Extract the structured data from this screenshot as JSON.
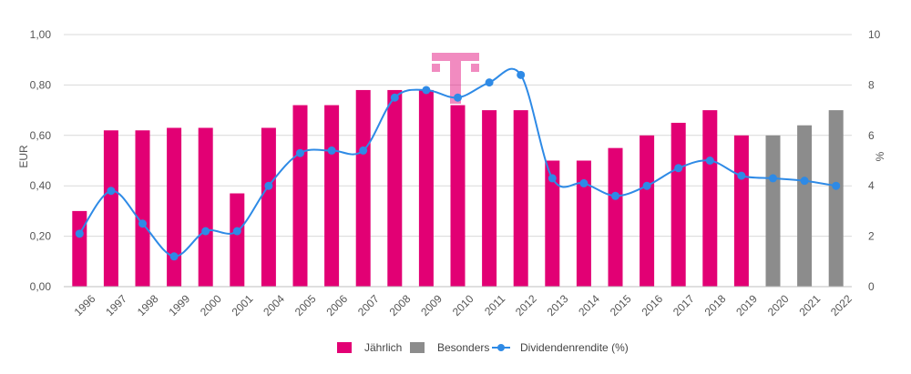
{
  "chart_data": {
    "type": "bar",
    "categories": [
      "1996",
      "1997",
      "1998",
      "1999",
      "2000",
      "2001",
      "2004",
      "2005",
      "2006",
      "2007",
      "2008",
      "2009",
      "2010",
      "2011",
      "2012",
      "2013",
      "2014",
      "2015",
      "2016",
      "2017",
      "2018",
      "2019",
      "2020",
      "2021",
      "2022"
    ],
    "ylabel": "EUR",
    "y2label": "%",
    "ylim": [
      0,
      1.0
    ],
    "y2lim": [
      0,
      10
    ],
    "yticks": [
      "0,00",
      "0,20",
      "0,40",
      "0,60",
      "0,80",
      "1,00"
    ],
    "y2ticks": [
      "0",
      "2",
      "4",
      "6",
      "8",
      "10"
    ],
    "grid": true,
    "legend": "bottom",
    "series": [
      {
        "name": "Jährlich",
        "kind": "bar",
        "color": "#e20074",
        "values": [
          0.3,
          0.62,
          0.62,
          0.63,
          0.63,
          0.37,
          0.63,
          0.72,
          0.72,
          0.78,
          0.78,
          0.78,
          0.72,
          0.7,
          0.7,
          0.5,
          0.5,
          0.55,
          0.6,
          0.65,
          0.7,
          0.6,
          null,
          null,
          null
        ]
      },
      {
        "name": "Besonders",
        "kind": "bar",
        "color": "#8c8c8c",
        "values": [
          null,
          null,
          null,
          null,
          null,
          null,
          null,
          null,
          null,
          null,
          null,
          null,
          null,
          null,
          null,
          null,
          null,
          null,
          null,
          null,
          null,
          null,
          0.6,
          0.64,
          0.7
        ]
      },
      {
        "name": "Dividendenrendite (%)",
        "kind": "line",
        "axis": "right",
        "color": "#2e8ae6",
        "values": [
          2.1,
          3.8,
          2.5,
          1.2,
          2.2,
          2.2,
          4.0,
          5.3,
          5.4,
          5.4,
          7.5,
          7.8,
          7.5,
          8.1,
          8.4,
          4.3,
          4.1,
          3.6,
          4.0,
          4.7,
          5.0,
          4.4,
          4.3,
          4.2,
          4.0
        ]
      }
    ]
  },
  "logo": {
    "text": "T",
    "color": "#e20074"
  }
}
